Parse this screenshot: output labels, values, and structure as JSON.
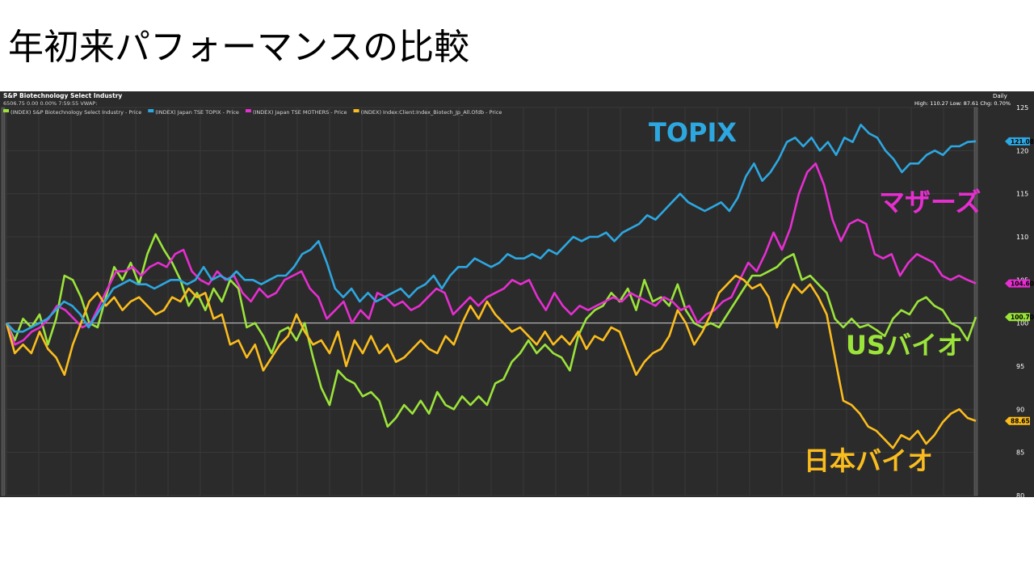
{
  "slide": {
    "title": "年初来パフォーマンスの比較"
  },
  "chart_header": {
    "instrument": "S&P Biotechnology Select Industry",
    "quote_line": "6506.75 0.00 0.00% 7:59:55 VWAP:",
    "frequency": "Daily",
    "stats": "High: 110.27 Low: 87.61 Chg: 0.70%"
  },
  "chart_data": {
    "type": "line",
    "ylim": [
      80,
      125
    ],
    "yticks": [
      80,
      85,
      90,
      95,
      100,
      105,
      110,
      115,
      120,
      125
    ],
    "baseline": 100,
    "legend_position": "top-left",
    "series": [
      {
        "name": "(INDEX) S&P Biotechnology Select Industry - Price",
        "annotation": "USバイオ",
        "color": "#9be43a",
        "end_label": "100.70",
        "values": [
          100.0,
          98.0,
          100.5,
          99.5,
          101.0,
          97.5,
          100.5,
          105.5,
          105.0,
          103.0,
          100.0,
          99.5,
          103.0,
          106.5,
          105.0,
          107.0,
          104.5,
          108.0,
          110.3,
          108.5,
          107.0,
          105.0,
          102.0,
          103.5,
          101.5,
          104.0,
          102.5,
          105.0,
          104.0,
          99.5,
          100.0,
          98.5,
          96.5,
          99.0,
          99.5,
          98.0,
          100.0,
          96.0,
          92.5,
          90.5,
          94.5,
          93.5,
          93.0,
          91.5,
          92.0,
          91.0,
          88.0,
          89.0,
          90.5,
          89.5,
          91.0,
          89.5,
          92.0,
          90.5,
          90.0,
          91.5,
          90.5,
          91.5,
          90.5,
          93.0,
          93.5,
          95.5,
          96.5,
          98.0,
          96.5,
          97.5,
          96.5,
          96.0,
          94.5,
          98.5,
          100.5,
          101.5,
          102.0,
          103.5,
          102.5,
          104.0,
          101.5,
          105.0,
          102.5,
          103.0,
          102.0,
          104.5,
          101.5,
          100.0,
          99.5,
          100.0,
          99.5,
          101.0,
          102.5,
          104.0,
          105.5,
          105.5,
          106.0,
          106.5,
          107.5,
          108.0,
          105.0,
          105.5,
          104.5,
          103.5,
          100.5,
          99.5,
          100.5,
          99.5,
          99.8,
          99.2,
          98.5,
          100.5,
          101.5,
          101.0,
          102.5,
          103.0,
          102.0,
          101.5,
          100.0,
          99.5,
          98.0,
          100.7
        ]
      },
      {
        "name": "(INDEX) Japan TSE TOPIX - Price",
        "annotation": "TOPIX",
        "color": "#2da7e0",
        "end_label": "121.08",
        "values": [
          100.0,
          99.0,
          99.0,
          99.5,
          100.0,
          100.5,
          101.5,
          102.5,
          102.0,
          101.0,
          99.5,
          101.0,
          102.5,
          104.0,
          104.5,
          105.0,
          104.5,
          104.5,
          104.0,
          104.5,
          105.0,
          105.0,
          104.5,
          105.0,
          106.5,
          105.0,
          105.5,
          105.0,
          106.0,
          105.0,
          105.0,
          104.5,
          105.0,
          105.5,
          105.5,
          106.5,
          108.0,
          108.5,
          109.5,
          107.0,
          104.0,
          103.0,
          104.0,
          102.5,
          103.5,
          102.5,
          103.0,
          103.5,
          104.0,
          103.0,
          104.0,
          104.5,
          105.5,
          104.0,
          105.5,
          106.5,
          106.5,
          107.5,
          107.0,
          106.5,
          107.0,
          108.0,
          107.5,
          107.5,
          108.0,
          107.5,
          108.5,
          108.0,
          109.0,
          110.0,
          109.5,
          110.0,
          110.0,
          110.5,
          109.5,
          110.5,
          111.0,
          111.5,
          112.5,
          112.0,
          113.0,
          114.0,
          115.0,
          114.0,
          113.5,
          113.0,
          113.5,
          114.0,
          113.0,
          114.5,
          117.0,
          118.5,
          116.5,
          117.5,
          119.0,
          121.0,
          121.5,
          120.5,
          121.5,
          120.0,
          121.0,
          119.5,
          121.5,
          121.0,
          123.0,
          122.0,
          121.5,
          120.0,
          119.0,
          117.5,
          118.5,
          118.5,
          119.5,
          120.0,
          119.5,
          120.5,
          120.5,
          121.0,
          121.08
        ]
      },
      {
        "name": "(INDEX) Japan TSE MOTHERS - Price",
        "annotation": "マザーズ",
        "color": "#e62ed1",
        "end_label": "104.60",
        "values": [
          100.0,
          97.5,
          98.0,
          99.0,
          99.5,
          100.5,
          102.0,
          101.5,
          100.5,
          99.5,
          100.0,
          102.0,
          104.0,
          106.0,
          106.0,
          106.5,
          105.5,
          106.5,
          107.0,
          106.5,
          108.0,
          108.5,
          106.0,
          105.0,
          104.5,
          106.0,
          105.0,
          105.5,
          103.5,
          102.5,
          104.0,
          103.0,
          103.5,
          105.0,
          105.5,
          106.0,
          104.0,
          103.0,
          100.5,
          101.5,
          102.5,
          100.0,
          101.5,
          100.5,
          103.5,
          103.0,
          102.0,
          102.5,
          101.5,
          102.0,
          103.0,
          104.0,
          103.5,
          101.0,
          102.0,
          103.0,
          102.0,
          103.0,
          103.5,
          104.0,
          105.0,
          104.5,
          105.0,
          103.0,
          101.5,
          103.5,
          102.0,
          101.0,
          102.0,
          101.5,
          102.0,
          102.5,
          103.0,
          102.5,
          103.5,
          103.0,
          102.5,
          102.0,
          103.0,
          102.5,
          101.5,
          102.0,
          100.0,
          101.0,
          101.5,
          102.5,
          103.0,
          105.0,
          107.0,
          106.0,
          108.0,
          110.5,
          108.5,
          111.0,
          115.0,
          117.5,
          118.5,
          116.0,
          112.0,
          109.5,
          111.5,
          112.0,
          111.5,
          108.0,
          107.5,
          108.0,
          105.5,
          107.0,
          108.0,
          107.5,
          107.0,
          105.5,
          105.0,
          105.5,
          105.0,
          104.6
        ]
      },
      {
        "name": "(INDEX) Index:Client:Index_Biotech_Jp_All.Ofdb - Price",
        "annotation": "日本バイオ",
        "color": "#fbbd1e",
        "end_label": "88.65",
        "values": [
          100.0,
          96.5,
          97.5,
          96.5,
          99.0,
          97.0,
          96.0,
          94.0,
          97.5,
          100.0,
          102.5,
          103.5,
          102.0,
          103.0,
          101.5,
          102.5,
          103.0,
          102.0,
          101.0,
          101.5,
          103.0,
          102.5,
          104.0,
          103.0,
          103.5,
          100.5,
          101.0,
          97.5,
          98.0,
          96.0,
          97.5,
          94.5,
          96.0,
          97.5,
          98.5,
          101.0,
          99.0,
          97.5,
          98.0,
          96.5,
          99.0,
          95.0,
          98.0,
          96.5,
          98.5,
          96.5,
          97.5,
          95.5,
          96.0,
          97.0,
          98.0,
          97.0,
          96.5,
          98.5,
          97.5,
          100.0,
          102.0,
          100.5,
          102.5,
          101.0,
          100.0,
          99.0,
          99.5,
          98.5,
          97.5,
          99.0,
          97.5,
          98.5,
          97.5,
          99.0,
          97.0,
          98.5,
          98.0,
          99.5,
          99.0,
          96.5,
          94.0,
          95.5,
          96.5,
          97.0,
          98.5,
          101.5,
          100.0,
          97.5,
          99.0,
          101.0,
          103.5,
          104.5,
          105.5,
          105.0,
          104.0,
          104.5,
          103.0,
          99.5,
          102.5,
          104.5,
          103.5,
          104.5,
          103.0,
          101.0,
          96.0,
          91.0,
          90.5,
          89.5,
          88.0,
          87.5,
          86.5,
          85.5,
          87.0,
          86.5,
          87.5,
          86.0,
          87.0,
          88.5,
          89.5,
          90.0,
          89.0,
          88.65
        ]
      }
    ]
  }
}
